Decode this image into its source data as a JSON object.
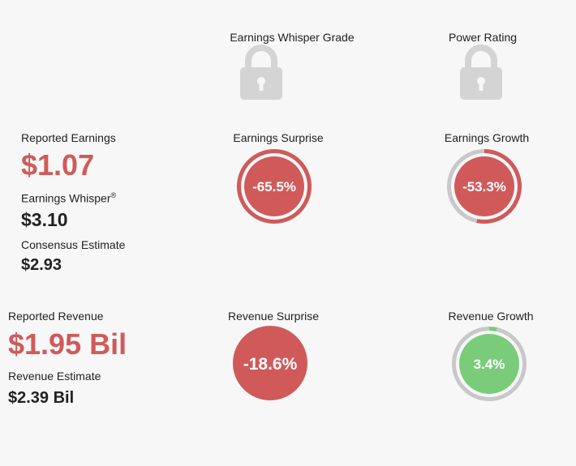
{
  "grades": {
    "whisper_grade_label": "Earnings Whisper Grade",
    "power_rating_label": "Power Rating",
    "lock_icon": "lock-icon"
  },
  "earnings": {
    "reported_label": "Reported Earnings",
    "reported_value": "$1.07",
    "whisper_label": "Earnings Whisper",
    "whisper_mark": "®",
    "whisper_value": "$3.10",
    "consensus_label": "Consensus Estimate",
    "consensus_value": "$2.93",
    "surprise_label": "Earnings Surprise",
    "surprise_value": "-65.5%",
    "surprise_fraction": 1.0,
    "growth_label": "Earnings Growth",
    "growth_value": "-53.3%",
    "growth_fraction": 0.533
  },
  "revenue": {
    "reported_label": "Reported Revenue",
    "reported_value": "$1.95 Bil",
    "estimate_label": "Revenue Estimate",
    "estimate_value": "$2.39 Bil",
    "surprise_label": "Revenue Surprise",
    "surprise_value": "-18.6%",
    "growth_label": "Revenue Growth",
    "growth_value": "3.4%",
    "growth_fraction": 0.034
  },
  "colors": {
    "negative": "#d05a5a",
    "positive": "#7acc7a",
    "track": "#c8c8c8",
    "lock": "#d4d4d4"
  }
}
